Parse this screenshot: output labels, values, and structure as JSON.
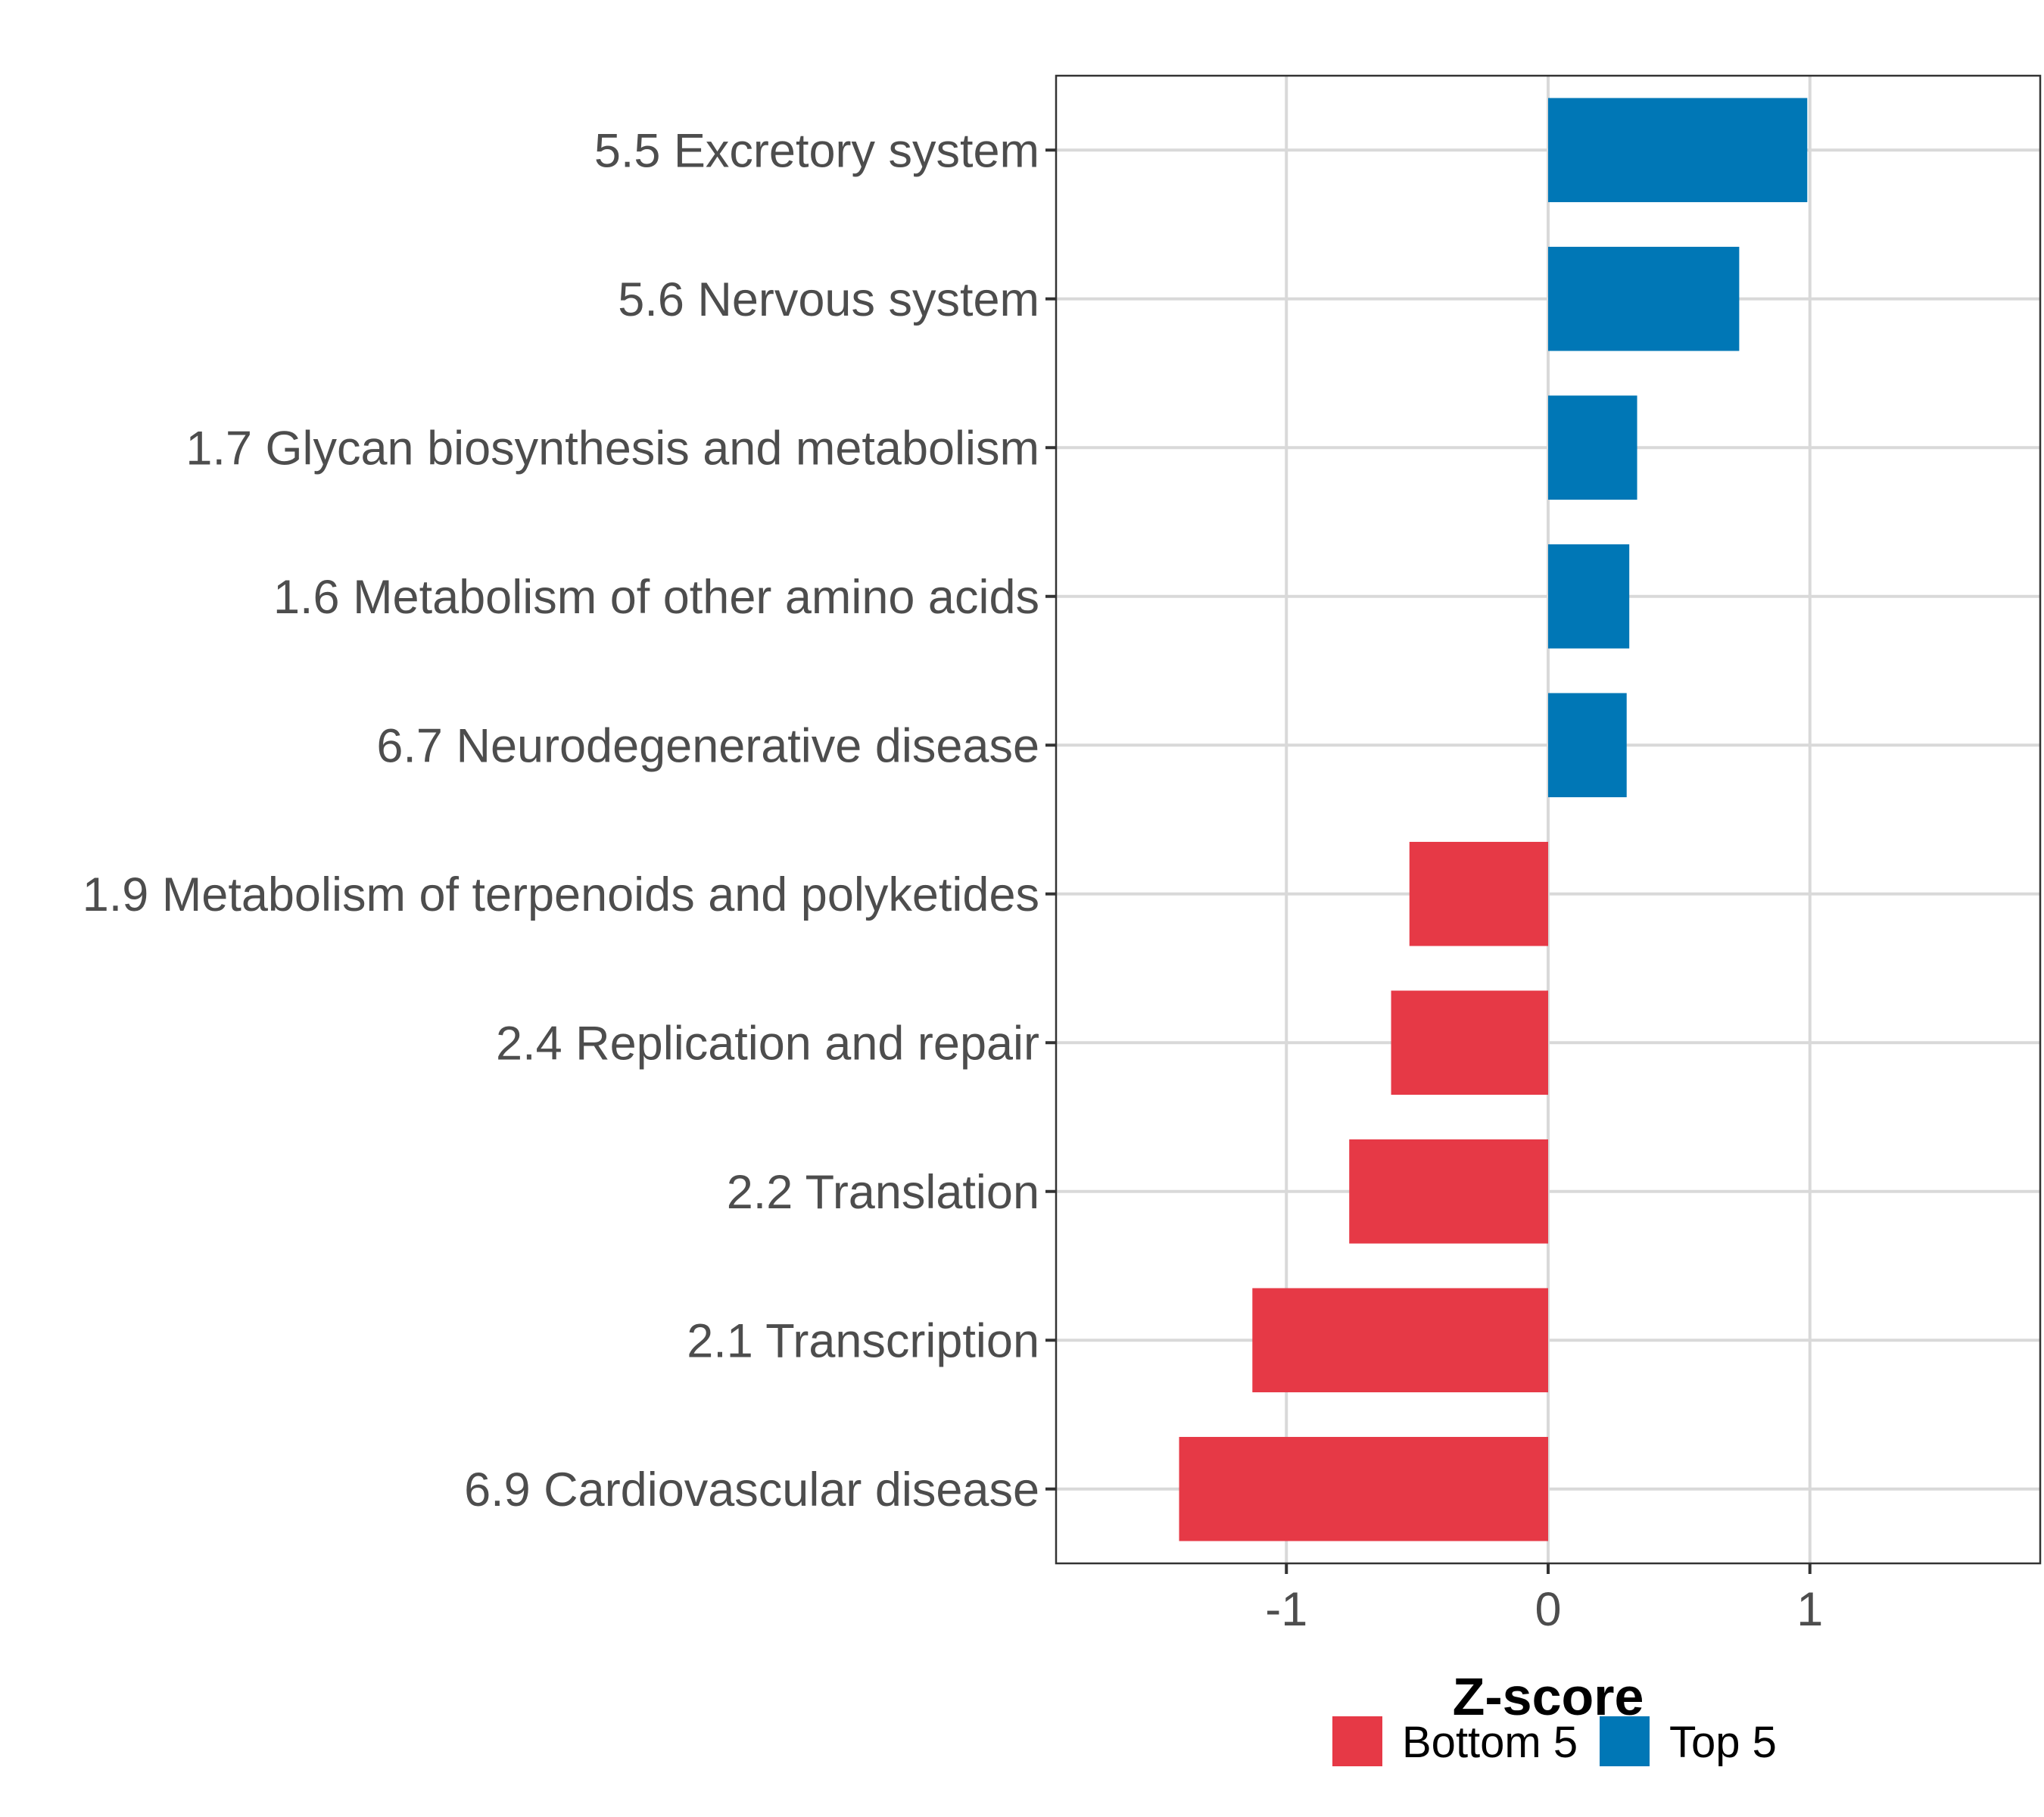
{
  "colors": {
    "bottom": "#e63946",
    "top": "#0077b6",
    "grid": "#d9d9d9",
    "panel_border": "#333333",
    "label": "#4d4d4d"
  },
  "chart_data": {
    "type": "bar",
    "orientation": "horizontal",
    "xlabel": "Z-score",
    "xlim": [
      -1.88,
      1.88
    ],
    "xticks": [
      -1,
      0,
      1
    ],
    "xtick_labels": [
      "-1",
      "0",
      "1"
    ],
    "grid": true,
    "legend_position": "bottom",
    "legend": [
      {
        "name": "Bottom 5",
        "color": "#e63946"
      },
      {
        "name": "Top 5",
        "color": "#0077b6"
      }
    ],
    "categories": [
      "5.5 Excretory system",
      "5.6 Nervous system",
      "1.7 Glycan biosynthesis and metabolism",
      "1.6 Metabolism of other amino acids",
      "6.7 Neurodegenerative disease",
      "1.9 Metabolism of terpenoids and polyketides",
      "2.4 Replication and repair",
      "2.2 Translation",
      "2.1 Transcription",
      "6.9 Cardiovascular disease"
    ],
    "values": [
      0.99,
      0.73,
      0.34,
      0.31,
      0.3,
      -0.53,
      -0.6,
      -0.76,
      -1.13,
      -1.41
    ],
    "groups": [
      "Top 5",
      "Top 5",
      "Top 5",
      "Top 5",
      "Top 5",
      "Bottom 5",
      "Bottom 5",
      "Bottom 5",
      "Bottom 5",
      "Bottom 5"
    ]
  }
}
